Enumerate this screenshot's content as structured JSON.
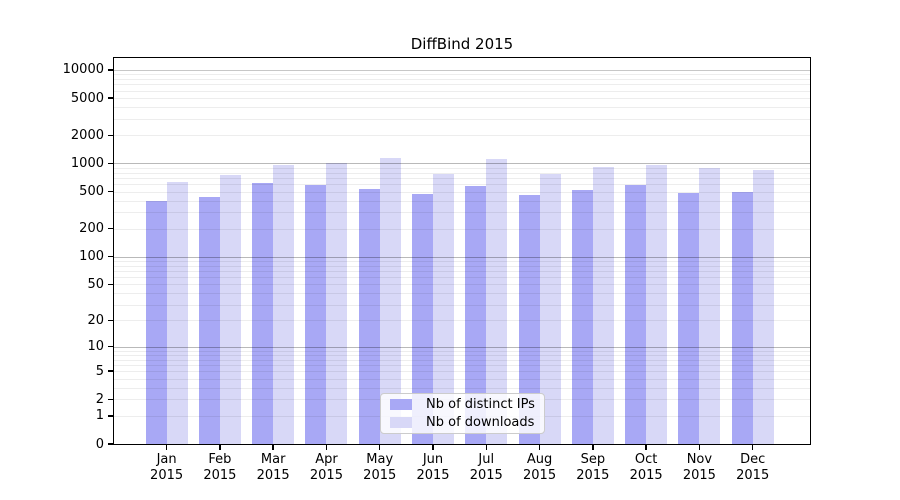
{
  "title": "DiffBind 2015",
  "colors": {
    "ips_bar": "#a8a8f5",
    "downloads_bar": "#d8d8f7",
    "grid_minor": "rgba(0,0,0,0.07)",
    "grid_major": "rgba(0,0,0,0.22)",
    "axis": "#000000",
    "background": "#ffffff",
    "legend_border": "#cccccc"
  },
  "legend": {
    "items": [
      {
        "label": "Nb of distinct IPs",
        "color_key": "ips_bar"
      },
      {
        "label": "Nb of downloads",
        "color_key": "downloads_bar"
      }
    ]
  },
  "chart_data": {
    "type": "bar",
    "title": "DiffBind 2015",
    "categories": [
      "Jan 2015",
      "Feb 2015",
      "Mar 2015",
      "Apr 2015",
      "May 2015",
      "Jun 2015",
      "Jul 2015",
      "Aug 2015",
      "Sep 2015",
      "Oct 2015",
      "Nov 2015",
      "Dec 2015"
    ],
    "series": [
      {
        "name": "Nb of distinct IPs",
        "color_key": "ips_bar",
        "values": [
          395,
          435,
          615,
          595,
          530,
          475,
          575,
          465,
          520,
          585,
          485,
          495
        ]
      },
      {
        "name": "Nb of downloads",
        "color_key": "downloads_bar",
        "values": [
          640,
          755,
          960,
          1000,
          1140,
          770,
          1120,
          775,
          925,
          970,
          895,
          845
        ]
      }
    ],
    "xlabel": "",
    "ylabel": "",
    "y_scale": "log1p",
    "ylim": [
      0,
      10000
    ],
    "y_ticks": [
      0,
      1,
      2,
      5,
      10,
      20,
      50,
      100,
      200,
      500,
      1000,
      2000,
      5000,
      10000
    ],
    "y_minor_gridlines": [
      1,
      2,
      3,
      4,
      5,
      6,
      7,
      8,
      9,
      10,
      20,
      30,
      40,
      50,
      60,
      70,
      80,
      90,
      100,
      200,
      300,
      400,
      500,
      600,
      700,
      800,
      900,
      1000,
      2000,
      3000,
      4000,
      5000,
      6000,
      7000,
      8000,
      9000
    ],
    "y_major_gridlines": [
      10,
      100,
      1000,
      10000
    ],
    "grid": true,
    "legend_position": "lower center"
  }
}
